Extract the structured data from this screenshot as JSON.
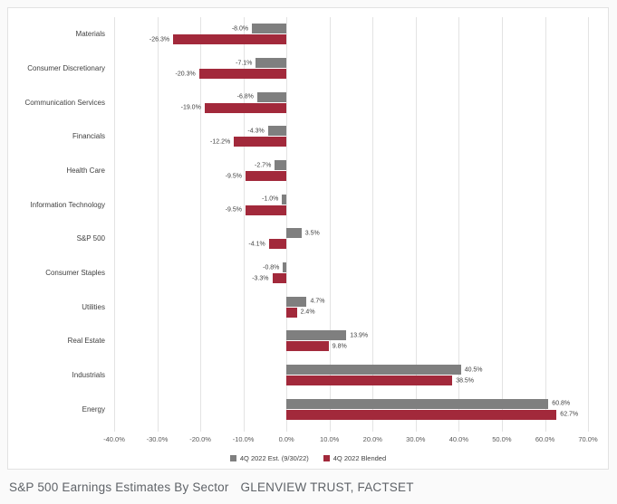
{
  "caption": {
    "title": "S&P 500 Earnings Estimates By Sector",
    "source": "GLENVIEW TRUST, FACTSET"
  },
  "colors": {
    "est_series": "#7f7f7f",
    "blended_series": "#a2293b",
    "gridline": "#e3e3e3",
    "axis_text": "#595959"
  },
  "chart_data": {
    "type": "bar",
    "orientation": "horizontal",
    "title": "",
    "xlabel": "",
    "ylabel": "",
    "grid": true,
    "legend_position": "bottom",
    "xlim": [
      -40,
      70
    ],
    "xtick_values": [
      -40,
      -30,
      -20,
      -10,
      0,
      10,
      20,
      30,
      40,
      50,
      60,
      70
    ],
    "xticks": [
      "-40.0%",
      "-30.0%",
      "-20.0%",
      "-10.0%",
      "0.0%",
      "10.0%",
      "20.0%",
      "30.0%",
      "40.0%",
      "50.0%",
      "60.0%",
      "70.0%"
    ],
    "categories": [
      "Materials",
      "Consumer Discretionary",
      "Communication Services",
      "Financials",
      "Health Care",
      "Information Technology",
      "S&P 500",
      "Consumer Staples",
      "Utilities",
      "Real Estate",
      "Industrials",
      "Energy"
    ],
    "series": [
      {
        "name": "4Q 2022 Est. (9/30/22)",
        "color": "#7f7f7f",
        "values": [
          -8.0,
          -7.1,
          -6.8,
          -4.3,
          -2.7,
          -1.0,
          3.5,
          -0.8,
          4.7,
          13.9,
          40.5,
          60.8
        ],
        "labels": [
          "-8.0%",
          "-7.1%",
          "-6.8%",
          "-4.3%",
          "-2.7%",
          "-1.0%",
          "3.5%",
          "-0.8%",
          "4.7%",
          "13.9%",
          "40.5%",
          "60.8%"
        ]
      },
      {
        "name": "4Q 2022 Blended",
        "color": "#a2293b",
        "values": [
          -26.3,
          -20.3,
          -19.0,
          -12.2,
          -9.5,
          -9.5,
          -4.1,
          -3.3,
          2.4,
          9.8,
          38.5,
          62.7
        ],
        "labels": [
          "-26.3%",
          "-20.3%",
          "-19.0%",
          "-12.2%",
          "-9.5%",
          "-9.5%",
          "-4.1%",
          "-3.3%",
          "2.4%",
          "9.8%",
          "38.5%",
          "62.7%"
        ]
      }
    ]
  }
}
